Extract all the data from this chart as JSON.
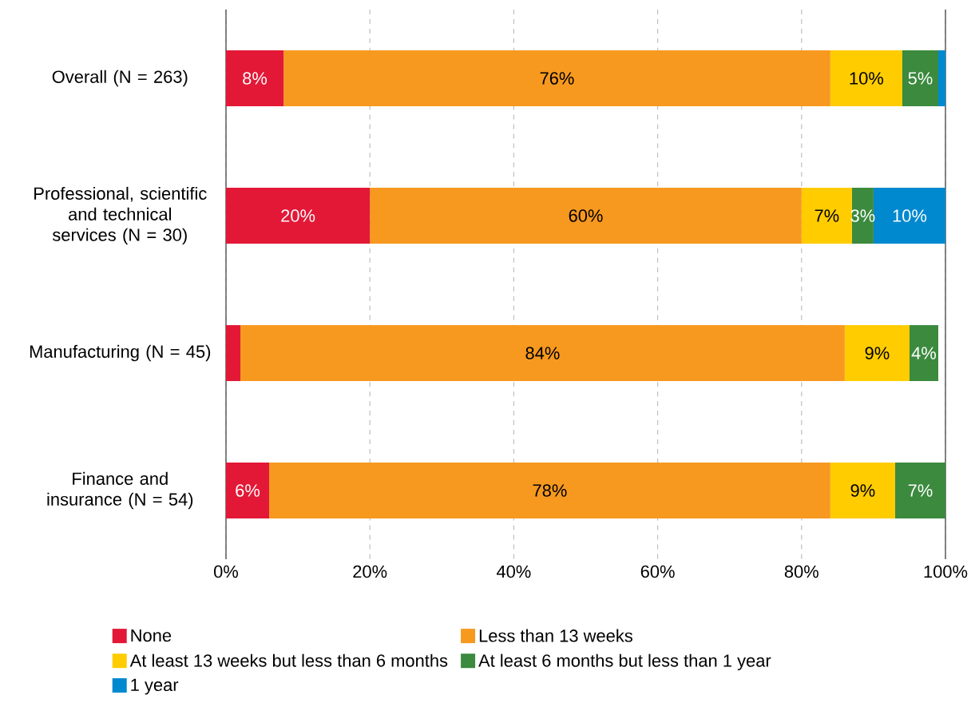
{
  "chart_data": {
    "type": "bar",
    "orientation": "horizontal",
    "stacked": true,
    "grid": "x",
    "legend": "bottom",
    "categories": [
      "Overall (N = 263)",
      "Professional, scientific and technical services (N = 30)",
      "Manufacturing (N = 45)",
      "Finance and insurance (N = 54)"
    ],
    "xlim": [
      0,
      100
    ],
    "xticks": [
      {
        "value": 0,
        "label": "0%"
      },
      {
        "value": 20,
        "label": "20%"
      },
      {
        "value": 40,
        "label": "40%"
      },
      {
        "value": 60,
        "label": "60%"
      },
      {
        "value": 80,
        "label": "80%"
      },
      {
        "value": 100,
        "label": "100%"
      }
    ],
    "series": [
      {
        "name": "None",
        "color": "#e31837",
        "values": [
          8,
          20,
          2,
          6
        ],
        "value_labels": [
          "8%",
          "20%",
          null,
          "6%"
        ]
      },
      {
        "name": "Less than 13 weeks",
        "color": "#f7991f",
        "values": [
          76,
          60,
          84,
          78
        ],
        "value_labels": [
          "76%",
          "60%",
          "84%",
          "78%"
        ]
      },
      {
        "name": "At least 13 weeks but less than 6 months",
        "color": "#ffcc00",
        "values": [
          10,
          7,
          9,
          9
        ],
        "value_labels": [
          "10%",
          "7%",
          "9%",
          "9%"
        ]
      },
      {
        "name": "At least 6 months but less than 1 year",
        "color": "#3b8a3e",
        "values": [
          5,
          3,
          4,
          7
        ],
        "value_labels": [
          "5%",
          "3%",
          "4%",
          "7%"
        ]
      },
      {
        "name": "1 year",
        "color": "#0089cf",
        "values": [
          1,
          10,
          null,
          null
        ],
        "value_labels": [
          null,
          "10%",
          null,
          null
        ]
      }
    ]
  }
}
